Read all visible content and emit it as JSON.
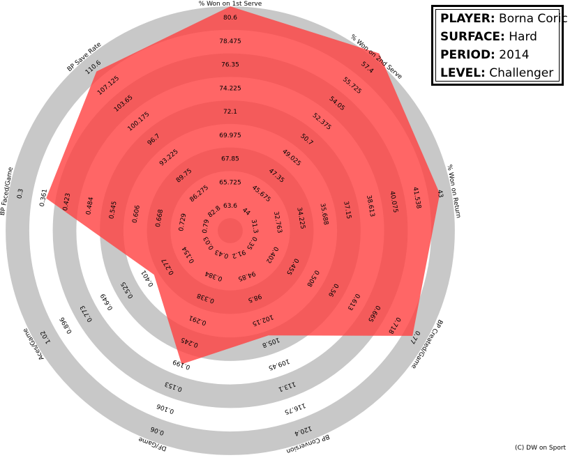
{
  "info": {
    "player_key": "PLAYER:",
    "player": "Borna Coric",
    "surface_key": "SURFACE:",
    "surface": "Hard",
    "period_key": "PERIOD:",
    "period": "2014",
    "level_key": "LEVEL:",
    "level": "Challenger"
  },
  "credit": "(C) DW on Sport",
  "colors": {
    "ring": "#c8c8c8",
    "fill": "#ff4040",
    "fill_opacity": 0.8
  },
  "chart_data": {
    "type": "radar",
    "axes": [
      {
        "label": "% Won on 1st Serve",
        "ticks": [
          "63.6",
          "65.725",
          "67.85",
          "69.975",
          "72.1",
          "74.225",
          "76.35",
          "78.475",
          "80.6"
        ],
        "value_ring": 8.5
      },
      {
        "label": "% Won on 2nd Serve",
        "ticks": [
          "44",
          "45.675",
          "47.35",
          "49.025",
          "50.7",
          "52.375",
          "54.05",
          "55.725",
          "57.4"
        ],
        "value_ring": 8.8
      },
      {
        "label": "% Won on Return",
        "ticks": [
          "31.3",
          "32.763",
          "34.225",
          "35.688",
          "37.15",
          "38.613",
          "40.075",
          "41.538",
          "43"
        ],
        "value_ring": 8.0
      },
      {
        "label": "BP Created/Game",
        "ticks": [
          "0.35",
          "0.402",
          "0.455",
          "0.508",
          "0.56",
          "0.613",
          "0.665",
          "0.718",
          "0.77"
        ],
        "value_ring": 7.9
      },
      {
        "label": "BP Conversion",
        "ticks": [
          "91.2",
          "94.85",
          "98.5",
          "102.15",
          "105.8",
          "109.45",
          "113.1",
          "116.75",
          "120.4"
        ],
        "value_ring": 3.7
      },
      {
        "label": "DF/Game",
        "ticks": [
          "0.43",
          "0.384",
          "0.338",
          "0.291",
          "0.245",
          "0.199",
          "0.153",
          "0.106",
          "0.06"
        ],
        "value_ring": 5.0
      },
      {
        "label": "Aces/Game",
        "ticks": [
          "0.03",
          "0.154",
          "0.277",
          "0.401",
          "0.525",
          "0.649",
          "0.773",
          "0.896",
          "1.02"
        ],
        "value_ring": 2.7
      },
      {
        "label": "BP Faced/Game",
        "ticks": [
          "0.79",
          "0.729",
          "0.668",
          "0.606",
          "0.545",
          "0.484",
          "0.423",
          "0.361",
          "0.3"
        ],
        "value_ring": 6.9
      },
      {
        "label": "BP Save Rate",
        "ticks": [
          "82.8",
          "86.275",
          "89.75",
          "93.225",
          "96.7",
          "100.175",
          "103.65",
          "107.125",
          "110.6"
        ],
        "value_ring": 7.8
      }
    ]
  }
}
